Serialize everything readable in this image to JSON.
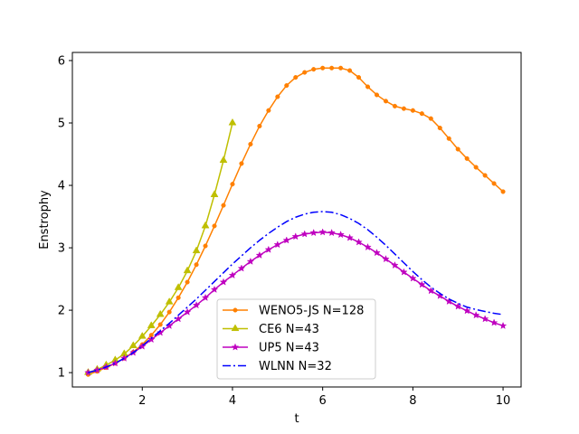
{
  "chart_data": {
    "type": "line",
    "title": "",
    "xlabel": "t",
    "ylabel": "Enstrophy",
    "xlim": [
      0.45,
      10.4
    ],
    "ylim": [
      0.77,
      6.13
    ],
    "xticks": [
      2,
      4,
      6,
      8,
      10
    ],
    "yticks": [
      1,
      2,
      3,
      4,
      5,
      6
    ],
    "legend": "lower-center",
    "series": [
      {
        "name": "WENO5-JS N=128",
        "color": "#ff8000",
        "marker": "circle",
        "linestyle": "solid",
        "x": [
          0.8,
          1.0,
          1.2,
          1.4,
          1.6,
          1.8,
          2.0,
          2.2,
          2.4,
          2.6,
          2.8,
          3.0,
          3.2,
          3.4,
          3.6,
          3.8,
          4.0,
          4.2,
          4.4,
          4.6,
          4.8,
          5.0,
          5.2,
          5.4,
          5.6,
          5.8,
          6.0,
          6.2,
          6.4,
          6.6,
          6.8,
          7.0,
          7.2,
          7.4,
          7.6,
          7.8,
          8.0,
          8.2,
          8.4,
          8.6,
          8.8,
          9.0,
          9.2,
          9.4,
          9.6,
          9.8,
          10.0
        ],
        "y": [
          0.97,
          1.02,
          1.08,
          1.15,
          1.23,
          1.33,
          1.45,
          1.6,
          1.77,
          1.97,
          2.2,
          2.45,
          2.73,
          3.03,
          3.35,
          3.68,
          4.02,
          4.35,
          4.66,
          4.95,
          5.2,
          5.42,
          5.6,
          5.73,
          5.81,
          5.86,
          5.88,
          5.88,
          5.88,
          5.84,
          5.73,
          5.58,
          5.45,
          5.35,
          5.27,
          5.23,
          5.2,
          5.15,
          5.07,
          4.92,
          4.75,
          4.58,
          4.43,
          4.29,
          4.16,
          4.03,
          3.9
        ]
      },
      {
        "name": "CE6 N=43",
        "color": "#bfbf00",
        "marker": "triangle",
        "linestyle": "solid",
        "x": [
          0.8,
          1.0,
          1.2,
          1.4,
          1.6,
          1.8,
          2.0,
          2.2,
          2.4,
          2.6,
          2.8,
          3.0,
          3.2,
          3.4,
          3.6,
          3.8,
          4.0
        ],
        "y": [
          1.0,
          1.05,
          1.12,
          1.2,
          1.3,
          1.43,
          1.58,
          1.75,
          1.93,
          2.13,
          2.36,
          2.63,
          2.95,
          3.35,
          3.85,
          4.4,
          5.0
        ]
      },
      {
        "name": "UP5 N=43",
        "color": "#bf00bf",
        "marker": "star",
        "linestyle": "solid",
        "x": [
          0.8,
          1.0,
          1.2,
          1.4,
          1.6,
          1.8,
          2.0,
          2.2,
          2.4,
          2.6,
          2.8,
          3.0,
          3.2,
          3.4,
          3.6,
          3.8,
          4.0,
          4.2,
          4.4,
          4.6,
          4.8,
          5.0,
          5.2,
          5.4,
          5.6,
          5.8,
          6.0,
          6.2,
          6.4,
          6.6,
          6.8,
          7.0,
          7.2,
          7.4,
          7.6,
          7.8,
          8.0,
          8.2,
          8.4,
          8.6,
          8.8,
          9.0,
          9.2,
          9.4,
          9.6,
          9.8,
          10.0
        ],
        "y": [
          1.0,
          1.04,
          1.09,
          1.15,
          1.23,
          1.32,
          1.42,
          1.53,
          1.64,
          1.75,
          1.86,
          1.97,
          2.08,
          2.2,
          2.33,
          2.45,
          2.56,
          2.67,
          2.78,
          2.88,
          2.97,
          3.05,
          3.12,
          3.18,
          3.22,
          3.24,
          3.25,
          3.24,
          3.21,
          3.16,
          3.09,
          3.01,
          2.92,
          2.82,
          2.72,
          2.61,
          2.51,
          2.41,
          2.31,
          2.23,
          2.14,
          2.06,
          1.99,
          1.92,
          1.86,
          1.8,
          1.75
        ]
      },
      {
        "name": "WLNN N=32",
        "color": "#0000ff",
        "marker": "none",
        "linestyle": "dashdot",
        "x": [
          0.8,
          1.0,
          1.2,
          1.4,
          1.6,
          1.8,
          2.0,
          2.2,
          2.4,
          2.6,
          2.8,
          3.0,
          3.2,
          3.4,
          3.6,
          3.8,
          4.0,
          4.2,
          4.4,
          4.6,
          4.8,
          5.0,
          5.2,
          5.4,
          5.6,
          5.8,
          6.0,
          6.2,
          6.4,
          6.6,
          6.8,
          7.0,
          7.2,
          7.4,
          7.6,
          7.8,
          8.0,
          8.2,
          8.4,
          8.6,
          8.8,
          9.0,
          9.2,
          9.4,
          9.6,
          9.8,
          10.0
        ],
        "y": [
          1.0,
          1.04,
          1.09,
          1.15,
          1.23,
          1.32,
          1.43,
          1.55,
          1.67,
          1.79,
          1.92,
          2.05,
          2.18,
          2.32,
          2.46,
          2.6,
          2.74,
          2.87,
          3.0,
          3.12,
          3.23,
          3.33,
          3.42,
          3.49,
          3.54,
          3.57,
          3.58,
          3.57,
          3.53,
          3.47,
          3.39,
          3.29,
          3.17,
          3.04,
          2.9,
          2.76,
          2.62,
          2.49,
          2.37,
          2.27,
          2.18,
          2.11,
          2.05,
          2.01,
          1.98,
          1.95,
          1.93
        ]
      }
    ]
  }
}
